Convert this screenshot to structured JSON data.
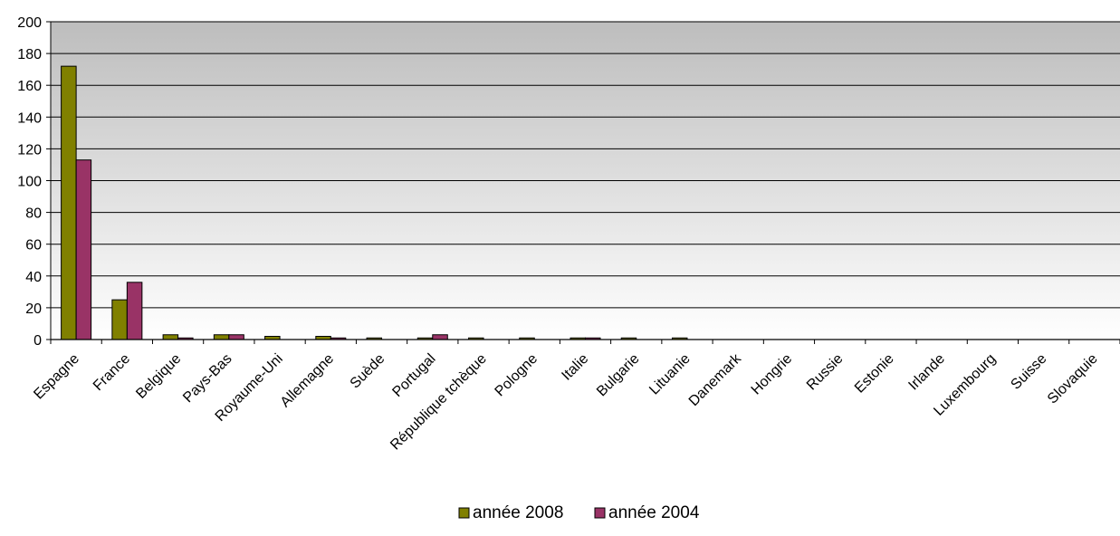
{
  "chart_data": {
    "type": "bar",
    "categories": [
      "Espagne",
      "France",
      "Belgique",
      "Pays-Bas",
      "Royaume-Uni",
      "Allemagne",
      "Suède",
      "Portugal",
      "République tchèque",
      "Pologne",
      "Italie",
      "Bulgarie",
      "Lituanie",
      "Danemark",
      "Hongrie",
      "Russie",
      "Estonie",
      "Irlande",
      "Luxembourg",
      "Suisse",
      "Slovaquie"
    ],
    "series": [
      {
        "name": "année 2008",
        "color": "#808000",
        "values": [
          172,
          25,
          3,
          3,
          2,
          2,
          1,
          1,
          1,
          1,
          1,
          1,
          1,
          0,
          0,
          0,
          0,
          0,
          0,
          0,
          0
        ]
      },
      {
        "name": "année 2004",
        "color": "#993366",
        "values": [
          113,
          36,
          1,
          3,
          0,
          1,
          0,
          3,
          0,
          0,
          1,
          0,
          0,
          0,
          0,
          0,
          0,
          0,
          0,
          0,
          0
        ]
      }
    ],
    "ylim": [
      0,
      200
    ],
    "yticks": [
      "0",
      "20",
      "40",
      "60",
      "80",
      "100",
      "120",
      "140",
      "160",
      "180",
      "200"
    ],
    "grid": true,
    "background": "gradient-gray",
    "legend": "bottom-center",
    "title": "",
    "xlabel": "",
    "ylabel": ""
  }
}
